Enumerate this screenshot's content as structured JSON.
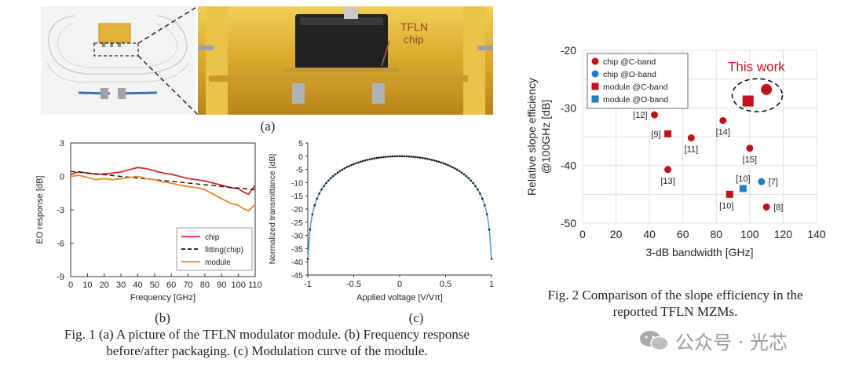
{
  "fig1": {
    "photo": {
      "chip_label_line1": "TFLN",
      "chip_label_line2": "chip",
      "sublabel": "(a)"
    },
    "chart_b": {
      "sublabel": "(b)"
    },
    "chart_c": {
      "sublabel": "(c)"
    },
    "caption_line1": "Fig. 1 (a) A picture of the TFLN modulator module. (b) Frequency response",
    "caption_line2": "before/after packaging. (c) Modulation curve of the module."
  },
  "fig2": {
    "caption_line1": "Fig. 2 Comparison of the slope efficiency in the",
    "caption_line2": "reported TFLN MZMs.",
    "this_work_label": "This work"
  },
  "watermark": "公众号 · 光芯",
  "chart_data": [
    {
      "id": "b",
      "type": "line",
      "xlabel": "Frequency [GHz]",
      "ylabel": "EO response [dB]",
      "xlim": [
        0,
        110
      ],
      "ylim": [
        -9,
        3
      ],
      "xticks": [
        0,
        10,
        20,
        30,
        40,
        50,
        60,
        70,
        80,
        90,
        100,
        110
      ],
      "yticks": [
        3,
        0,
        -3,
        -6,
        -9
      ],
      "legend_position": "bottom-right",
      "series": [
        {
          "name": "chip",
          "color": "#d42a2a",
          "style": "solid",
          "x": [
            0,
            5,
            10,
            15,
            20,
            25,
            30,
            35,
            40,
            45,
            50,
            55,
            60,
            65,
            70,
            75,
            80,
            85,
            90,
            95,
            100,
            103,
            106,
            108,
            110
          ],
          "y": [
            0.2,
            0.4,
            0.3,
            0.2,
            0.2,
            0.3,
            0.4,
            0.6,
            0.8,
            0.7,
            0.5,
            0.3,
            0.2,
            0.0,
            -0.2,
            -0.3,
            -0.4,
            -0.6,
            -0.8,
            -1.0,
            -1.1,
            -1.4,
            -1.6,
            -1.2,
            -0.8
          ]
        },
        {
          "name": "fitting(chip)",
          "color": "#111111",
          "style": "dashed",
          "x": [
            0,
            110
          ],
          "y": [
            0.45,
            -1.2
          ]
        },
        {
          "name": "module",
          "color": "#e8862a",
          "style": "solid",
          "x": [
            0,
            5,
            10,
            15,
            20,
            25,
            30,
            35,
            40,
            45,
            50,
            55,
            60,
            65,
            70,
            75,
            80,
            85,
            90,
            95,
            100,
            103,
            106,
            108,
            110
          ],
          "y": [
            0.0,
            0.1,
            -0.1,
            -0.3,
            -0.2,
            -0.3,
            -0.2,
            -0.1,
            0.0,
            -0.2,
            -0.3,
            -0.5,
            -0.6,
            -0.8,
            -0.9,
            -1.0,
            -1.2,
            -1.6,
            -2.0,
            -2.4,
            -2.6,
            -2.9,
            -3.1,
            -2.8,
            -2.5
          ]
        }
      ]
    },
    {
      "id": "c",
      "type": "line",
      "xlabel": "Applied voltage [V/Vπ]",
      "ylabel": "Normalized transmittance [dB]",
      "xlim": [
        -1,
        1
      ],
      "ylim": [
        -45,
        5
      ],
      "xticks": [
        -1,
        -0.5,
        0,
        0.5,
        1
      ],
      "xtick_labels": [
        "-1",
        "-0.5",
        "0",
        "0.5",
        "1"
      ],
      "yticks": [
        5,
        0,
        -5,
        -10,
        -15,
        -20,
        -25,
        -30,
        -35,
        -40,
        -45
      ],
      "series": [
        {
          "name": "",
          "color": "#4a9fc6",
          "marker_color": "#1a1a1a",
          "formula": "10*log10(cos^2(pi*x/2) + 1.3e-4)"
        }
      ]
    },
    {
      "id": "fig2",
      "type": "scatter",
      "xlabel": "3-dB bandwidth [GHz]",
      "ylabel_line1": "Relative slope efficiency",
      "ylabel_line2": "@100GHz [dB]",
      "xlim": [
        0,
        140
      ],
      "ylim": [
        -50,
        -20
      ],
      "xticks": [
        0,
        20,
        40,
        60,
        80,
        100,
        120,
        140
      ],
      "yticks": [
        -20,
        -30,
        -40,
        -50
      ],
      "grid": true,
      "legend_position": "top-left",
      "series": [
        {
          "name": "chip @C-band",
          "marker": "circle",
          "color": "#c0121b"
        },
        {
          "name": "chip @O-band",
          "marker": "circle",
          "color": "#1f7fc4"
        },
        {
          "name": "module @C-band",
          "marker": "square",
          "color": "#c0121b"
        },
        {
          "name": "module @O-band",
          "marker": "square",
          "color": "#1f7fc4"
        }
      ],
      "points": [
        {
          "x": 43,
          "y": -31.2,
          "series": 0,
          "label": "[12]",
          "label_pos": "left"
        },
        {
          "x": 51,
          "y": -34.5,
          "series": 2,
          "label": "[9]",
          "label_pos": "left"
        },
        {
          "x": 65,
          "y": -35.2,
          "series": 0,
          "label": "[11]",
          "label_pos": "below"
        },
        {
          "x": 84,
          "y": -32.2,
          "series": 0,
          "label": "[14]",
          "label_pos": "below"
        },
        {
          "x": 51,
          "y": -40.7,
          "series": 0,
          "label": "[13]",
          "label_pos": "below"
        },
        {
          "x": 100,
          "y": -37.0,
          "series": 0,
          "label": "[15]",
          "label_pos": "below"
        },
        {
          "x": 88,
          "y": -45.0,
          "series": 2,
          "label": "[10]",
          "label_pos": "below-left"
        },
        {
          "x": 96,
          "y": -44.0,
          "series": 3,
          "label": "[10]",
          "label_pos": "above"
        },
        {
          "x": 107,
          "y": -42.8,
          "series": 1,
          "label": "[7]",
          "label_pos": "right"
        },
        {
          "x": 110,
          "y": -47.2,
          "series": 0,
          "label": "[8]",
          "label_pos": "right"
        },
        {
          "x": 99,
          "y": -28.8,
          "series": 2,
          "label": "",
          "size": "large"
        },
        {
          "x": 110,
          "y": -26.8,
          "series": 0,
          "label": "",
          "size": "large"
        }
      ]
    }
  ]
}
